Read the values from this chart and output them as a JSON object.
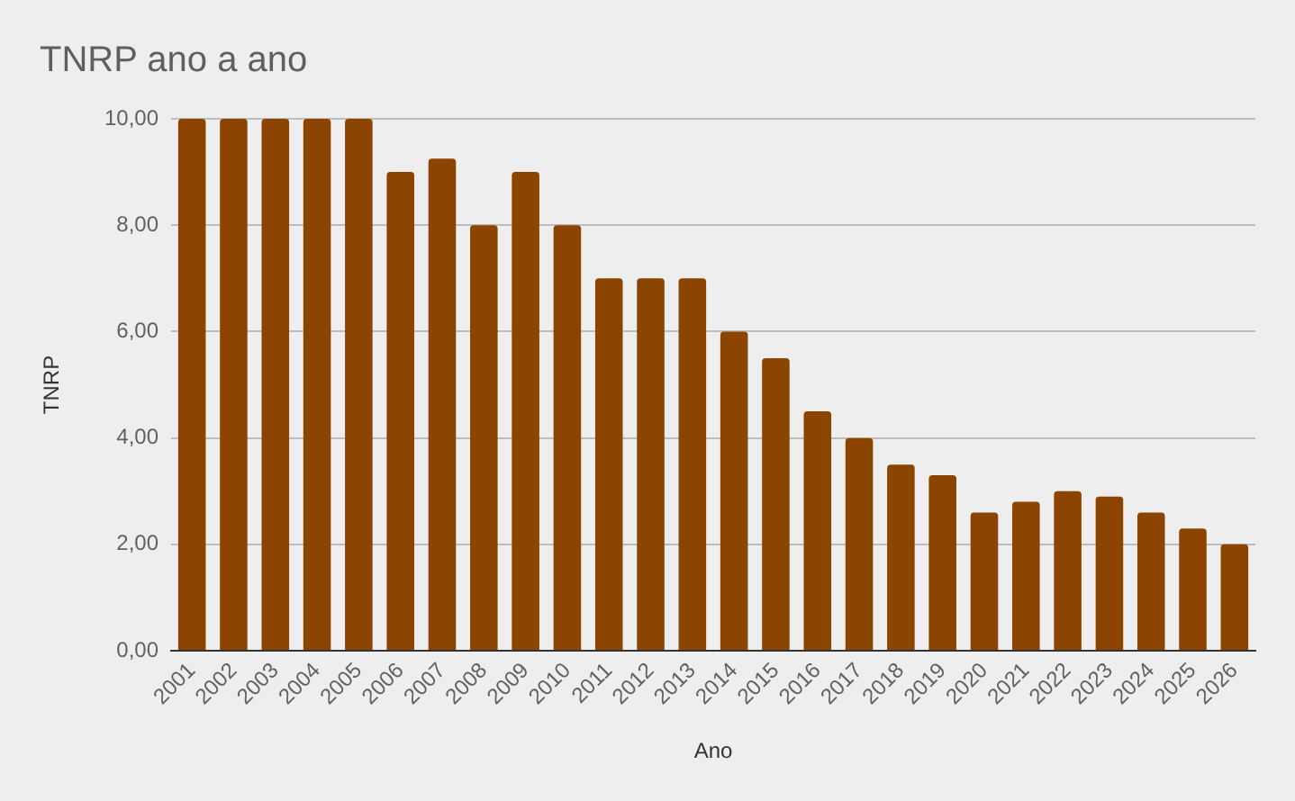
{
  "chart_data": {
    "type": "bar",
    "title": "TNRP ano a ano",
    "xlabel": "Ano",
    "ylabel": "TNRP",
    "categories": [
      "2001",
      "2002",
      "2003",
      "2004",
      "2005",
      "2006",
      "2007",
      "2008",
      "2009",
      "2010",
      "2011",
      "2012",
      "2013",
      "2014",
      "2015",
      "2016",
      "2017",
      "2018",
      "2019",
      "2020",
      "2021",
      "2022",
      "2023",
      "2024",
      "2025",
      "2026"
    ],
    "values": [
      10,
      10,
      10,
      10,
      10,
      9,
      9.25,
      8,
      9,
      8,
      7,
      7,
      7,
      6,
      5.5,
      4.5,
      4,
      3.5,
      3.3,
      2.6,
      2.8,
      3,
      2.9,
      2.6,
      2.3,
      2
    ],
    "color": "#8b4500",
    "ylim": [
      0,
      10
    ],
    "yticks": [
      {
        "value": 0,
        "label": "0,00"
      },
      {
        "value": 2,
        "label": "2,00"
      },
      {
        "value": 4,
        "label": "4,00"
      },
      {
        "value": 6,
        "label": "6,00"
      },
      {
        "value": 8,
        "label": "8,00"
      },
      {
        "value": 10,
        "label": "10,00"
      }
    ],
    "grid": "y"
  }
}
